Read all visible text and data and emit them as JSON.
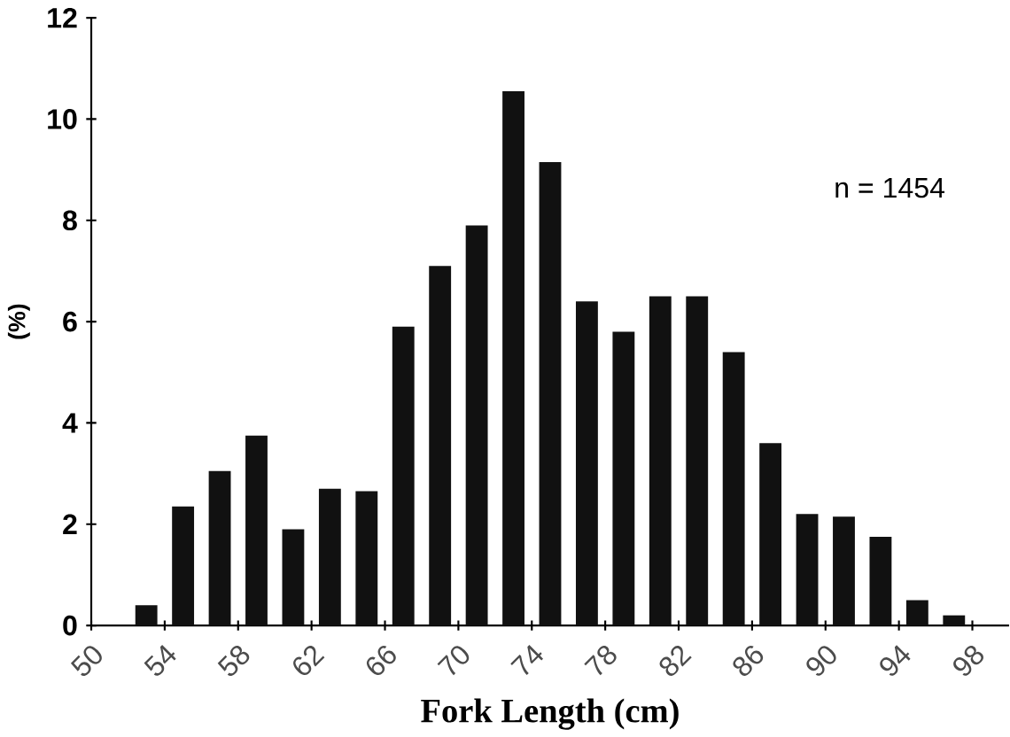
{
  "chart_data": {
    "type": "histogram",
    "xlabel": "Fork Length (cm)",
    "ylabel": "(%)",
    "bins": [
      52,
      54,
      56,
      58,
      60,
      62,
      64,
      66,
      68,
      70,
      72,
      74,
      76,
      78,
      80,
      82,
      84,
      86,
      88,
      90,
      92,
      94,
      96,
      98
    ],
    "values": [
      0.4,
      2.35,
      3.05,
      3.75,
      1.9,
      2.7,
      2.65,
      5.9,
      7.1,
      7.9,
      10.55,
      9.15,
      6.4,
      5.8,
      6.5,
      6.5,
      5.4,
      3.6,
      2.2,
      2.15,
      1.75,
      0.5,
      0.2
    ],
    "color": "#111111",
    "xlim": [
      50,
      100
    ],
    "ylim": [
      0,
      12
    ],
    "xticks": [
      50,
      54,
      58,
      62,
      66,
      70,
      74,
      78,
      82,
      86,
      90,
      94,
      98
    ],
    "yticks": [
      0,
      2,
      4,
      6,
      8,
      10,
      12
    ],
    "annotations": [
      "n = 1454"
    ]
  }
}
